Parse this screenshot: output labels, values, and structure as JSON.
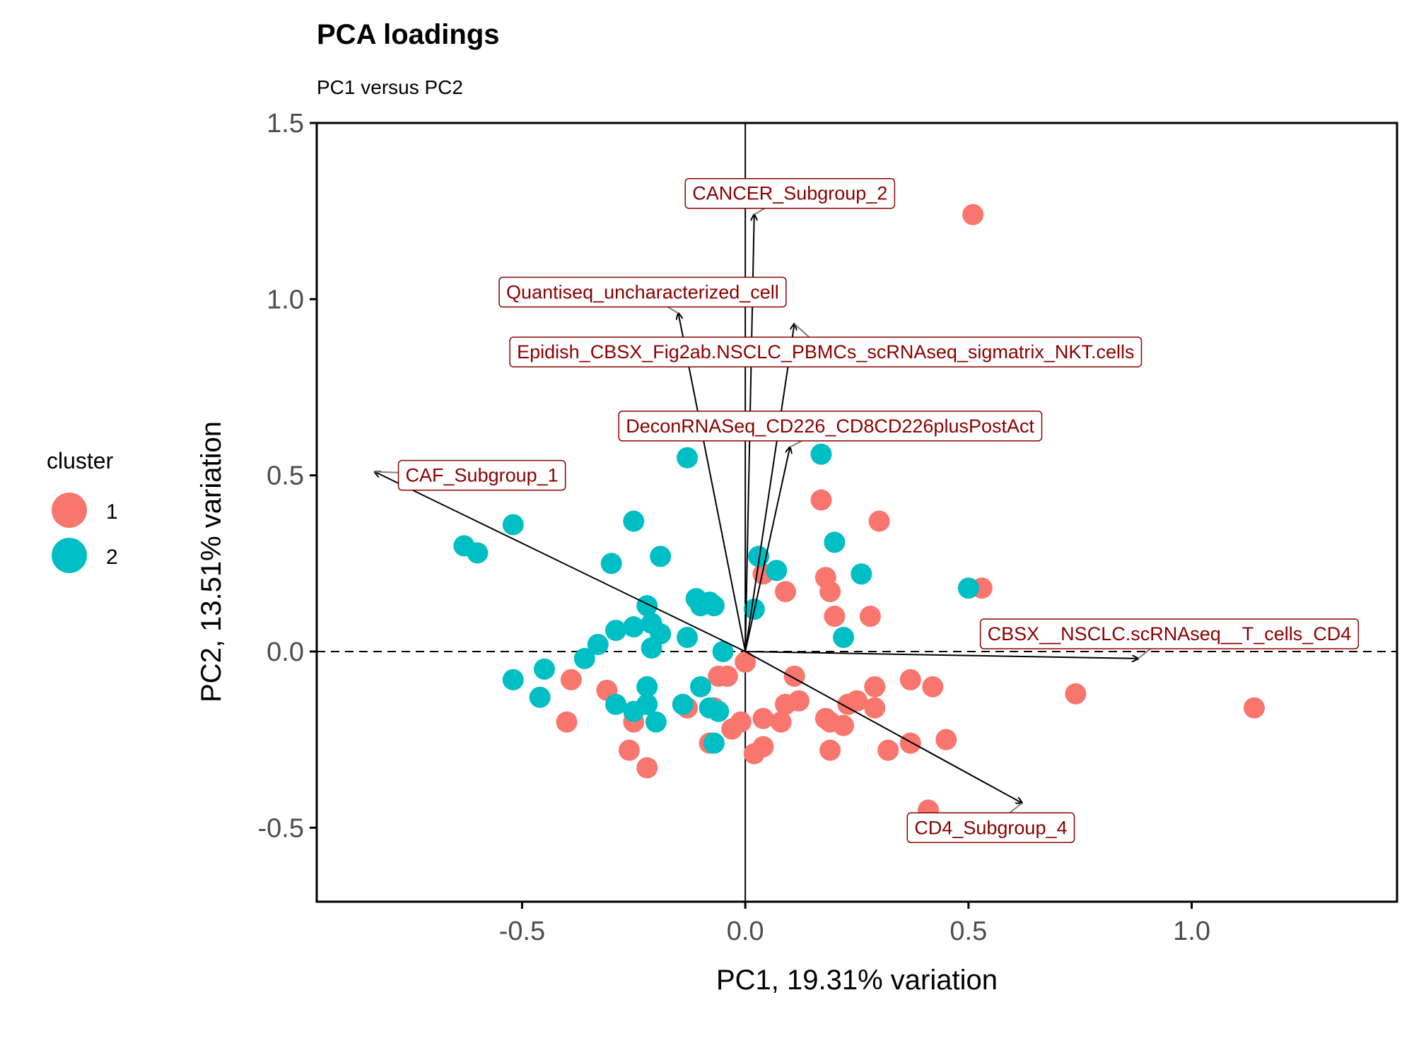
{
  "chart_data": {
    "type": "scatter",
    "title": "PCA loadings",
    "subtitle": "PC1 versus PC2",
    "xlabel": "PC1, 19.31% variation",
    "ylabel": "PC2, 13.51% variation",
    "xlim": [
      -0.96,
      1.46
    ],
    "ylim": [
      -0.71,
      1.5
    ],
    "x_ticks": [
      -0.5,
      0.0,
      0.5,
      1.0
    ],
    "y_ticks": [
      -0.5,
      0.0,
      0.5,
      1.0,
      1.5
    ],
    "x_tick_labels": [
      "-0.5",
      "0.0",
      "0.5",
      "1.0"
    ],
    "y_tick_labels": [
      "-0.5",
      "0.0",
      "0.5",
      "1.0",
      "1.5"
    ],
    "hline": 0,
    "vline": 0,
    "grid": false,
    "legend": {
      "title": "cluster",
      "position": "left",
      "entries": [
        {
          "label": "1",
          "color": "#F8766D"
        },
        {
          "label": "2",
          "color": "#00BFC4"
        }
      ]
    },
    "series": [
      {
        "name": "1",
        "color": "#F8766D",
        "points": [
          [
            0.51,
            1.24
          ],
          [
            0.53,
            0.18
          ],
          [
            0.17,
            0.43
          ],
          [
            0.3,
            0.37
          ],
          [
            0.04,
            0.22
          ],
          [
            0.18,
            0.21
          ],
          [
            0.19,
            0.17
          ],
          [
            0.09,
            0.17
          ],
          [
            0.2,
            0.1
          ],
          [
            0.28,
            0.1
          ],
          [
            0.0,
            -0.03
          ],
          [
            -0.06,
            -0.07
          ],
          [
            -0.04,
            -0.07
          ],
          [
            0.11,
            -0.07
          ],
          [
            0.37,
            -0.08
          ],
          [
            0.42,
            -0.1
          ],
          [
            0.29,
            -0.1
          ],
          [
            0.74,
            -0.12
          ],
          [
            1.14,
            -0.16
          ],
          [
            0.09,
            -0.15
          ],
          [
            0.12,
            -0.14
          ],
          [
            0.25,
            -0.14
          ],
          [
            0.23,
            -0.15
          ],
          [
            0.29,
            -0.16
          ],
          [
            0.04,
            -0.19
          ],
          [
            0.08,
            -0.2
          ],
          [
            0.18,
            -0.19
          ],
          [
            0.19,
            -0.2
          ],
          [
            0.22,
            -0.21
          ],
          [
            -0.01,
            -0.2
          ],
          [
            -0.03,
            -0.22
          ],
          [
            -0.08,
            -0.26
          ],
          [
            0.04,
            -0.27
          ],
          [
            0.02,
            -0.29
          ],
          [
            0.19,
            -0.28
          ],
          [
            0.32,
            -0.28
          ],
          [
            0.37,
            -0.26
          ],
          [
            0.45,
            -0.25
          ],
          [
            0.41,
            -0.45
          ],
          [
            -0.39,
            -0.08
          ],
          [
            -0.31,
            -0.11
          ],
          [
            -0.4,
            -0.2
          ],
          [
            -0.25,
            -0.2
          ],
          [
            -0.26,
            -0.28
          ],
          [
            -0.22,
            -0.33
          ],
          [
            -0.13,
            -0.16
          ],
          [
            -0.07,
            -0.16
          ]
        ]
      },
      {
        "name": "2",
        "color": "#00BFC4",
        "points": [
          [
            -0.13,
            0.55
          ],
          [
            0.17,
            0.56
          ],
          [
            -0.52,
            0.36
          ],
          [
            -0.63,
            0.3
          ],
          [
            -0.6,
            0.28
          ],
          [
            -0.25,
            0.37
          ],
          [
            -0.3,
            0.25
          ],
          [
            -0.19,
            0.27
          ],
          [
            0.03,
            0.27
          ],
          [
            0.07,
            0.23
          ],
          [
            0.2,
            0.31
          ],
          [
            0.26,
            0.22
          ],
          [
            0.5,
            0.18
          ],
          [
            -0.11,
            0.15
          ],
          [
            -0.1,
            0.13
          ],
          [
            -0.08,
            0.14
          ],
          [
            -0.07,
            0.13
          ],
          [
            0.02,
            0.12
          ],
          [
            -0.22,
            0.13
          ],
          [
            -0.21,
            0.08
          ],
          [
            -0.25,
            0.07
          ],
          [
            -0.29,
            0.06
          ],
          [
            -0.33,
            0.02
          ],
          [
            -0.19,
            0.05
          ],
          [
            -0.13,
            0.04
          ],
          [
            -0.21,
            0.01
          ],
          [
            -0.05,
            0.0
          ],
          [
            0.22,
            0.04
          ],
          [
            -0.36,
            -0.02
          ],
          [
            -0.52,
            -0.08
          ],
          [
            -0.45,
            -0.05
          ],
          [
            -0.46,
            -0.13
          ],
          [
            -0.29,
            -0.15
          ],
          [
            -0.22,
            -0.1
          ],
          [
            -0.25,
            -0.17
          ],
          [
            -0.22,
            -0.15
          ],
          [
            -0.2,
            -0.2
          ],
          [
            -0.14,
            -0.15
          ],
          [
            -0.1,
            -0.1
          ],
          [
            -0.08,
            -0.16
          ],
          [
            -0.06,
            -0.17
          ],
          [
            -0.07,
            -0.26
          ]
        ]
      }
    ],
    "loadings": [
      {
        "label": "CANCER_Subgroup_2",
        "x": 0.02,
        "y": 1.24,
        "label_x": 0.1,
        "label_y": 1.3
      },
      {
        "label": "Quantiseq_uncharacterized_cell",
        "x": -0.15,
        "y": 0.96,
        "label_x": -0.23,
        "label_y": 1.02
      },
      {
        "label": "Epidish_CBSX_Fig2ab.NSCLC_PBMCs_scRNAseq_sigmatrix_NKT.cells",
        "x": 0.11,
        "y": 0.93,
        "label_x": 0.18,
        "label_y": 0.85
      },
      {
        "label": "DeconRNASeq_CD226_CD8CD226plusPostAct",
        "x": 0.1,
        "y": 0.58,
        "label_x": 0.19,
        "label_y": 0.64
      },
      {
        "label": "CAF_Subgroup_1",
        "x": -0.83,
        "y": 0.51,
        "label_x": -0.59,
        "label_y": 0.5
      },
      {
        "label": "CBSX__NSCLC.scRNAseq__T_cells_CD4",
        "x": 0.88,
        "y": -0.02,
        "label_x": 0.95,
        "label_y": 0.05
      },
      {
        "label": "CD4_Subgroup_4",
        "x": 0.62,
        "y": -0.43,
        "label_x": 0.55,
        "label_y": -0.5
      }
    ]
  }
}
